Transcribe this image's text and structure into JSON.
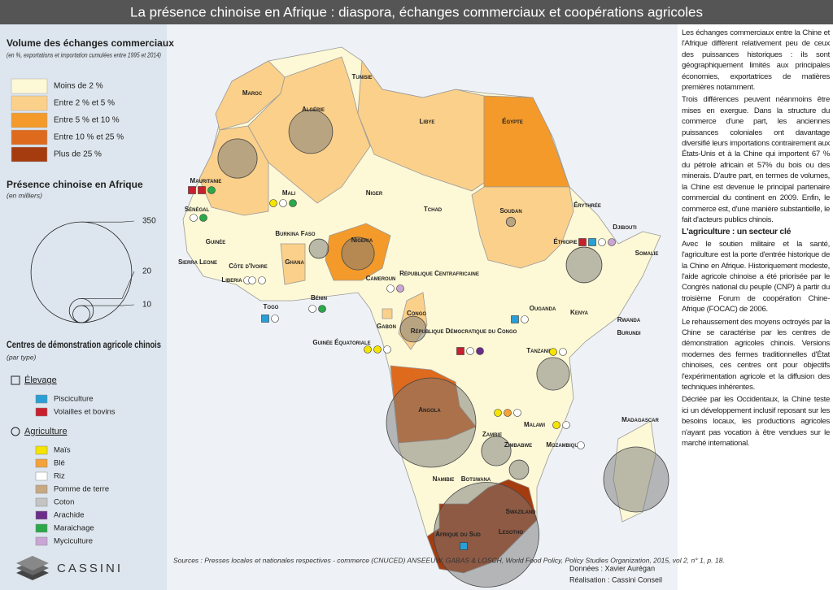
{
  "title": "La présence chinoise en Afrique : diaspora, échanges commerciaux et coopérations agricoles",
  "legend": {
    "volume_title": "Volume des échanges commerciaux",
    "volume_subtitle": "(en %, exportations et importation cumulées entre 1995 et 2014)",
    "classes": [
      {
        "label": "Moins de 2 %",
        "color": "#fdf8d6"
      },
      {
        "label": "Entre 2 % et 5 %",
        "color": "#fbd08a"
      },
      {
        "label": "Entre 5 % et 10 %",
        "color": "#f39a2a"
      },
      {
        "label": "Entre 10 % et 25 %",
        "color": "#de6a1e"
      },
      {
        "label": "Plus de 25 %",
        "color": "#a43c10"
      }
    ],
    "presence_title": "Présence chinoise en Afrique",
    "presence_subtitle": "(en milliers)",
    "presence_ticks": [
      350,
      20,
      10
    ],
    "centers_title": "Centres de démonstration agricole chinois",
    "centers_subtitle": "(par type)",
    "groups": [
      {
        "label": "Élevage",
        "items": [
          {
            "label": "Pisciculture",
            "color": "#2a9fd6"
          },
          {
            "label": "Volailles et bovins",
            "color": "#c8202f"
          }
        ]
      },
      {
        "label": "Agriculture",
        "items": [
          {
            "label": "Maïs",
            "color": "#f5e400"
          },
          {
            "label": "Blé",
            "color": "#f4a23a"
          },
          {
            "label": "Riz",
            "color": "#ffffff"
          },
          {
            "label": "Pomme de terre",
            "color": "#c8a882"
          },
          {
            "label": "Coton",
            "color": "#c4c4c4"
          },
          {
            "label": "Arachide",
            "color": "#6b2d8a"
          },
          {
            "label": "Maraichage",
            "color": "#2aa84a"
          },
          {
            "label": "Myciculture",
            "color": "#c9a6d6"
          }
        ]
      }
    ]
  },
  "countries": [
    {
      "label": "Maroc",
      "class": 1
    },
    {
      "label": "Algérie",
      "class": 1,
      "presence": 66
    },
    {
      "label": "Tunisie",
      "class": 0
    },
    {
      "label": "Libye",
      "class": 1
    },
    {
      "label": "Égypte",
      "class": 2
    },
    {
      "label": "Mauritanie",
      "class": 1,
      "presence": 53,
      "centers": [
        [
          0,
          1
        ],
        [
          0,
          1
        ],
        [
          1,
          6
        ]
      ]
    },
    {
      "label": "Mali",
      "class": 0,
      "centers": [
        [
          1,
          0
        ],
        [
          1,
          2
        ],
        [
          1,
          6
        ]
      ]
    },
    {
      "label": "Niger",
      "class": 0
    },
    {
      "label": "Tchad",
      "class": 0
    },
    {
      "label": "Soudan",
      "class": 1,
      "presence": 3
    },
    {
      "label": "Érythrée",
      "class": 0
    },
    {
      "label": "Djibouti",
      "class": 0
    },
    {
      "label": "Éthiopie",
      "class": 0,
      "presence": 44,
      "centers": [
        [
          0,
          1
        ],
        [
          0,
          0
        ],
        [
          1,
          2
        ],
        [
          1,
          7
        ]
      ]
    },
    {
      "label": "Somalie",
      "class": 0
    },
    {
      "label": "Sénégal",
      "class": 0,
      "centers": [
        [
          1,
          2
        ],
        [
          1,
          6
        ]
      ]
    },
    {
      "label": "Guinée",
      "class": 0
    },
    {
      "label": "Sierra Leone",
      "class": 0
    },
    {
      "label": "Liberia",
      "class": 0,
      "centers": [
        [
          1,
          2
        ]
      ]
    },
    {
      "label": "Côte d'Ivoire",
      "class": 0,
      "centers": [
        [
          1,
          2
        ],
        [
          1,
          2
        ]
      ]
    },
    {
      "label": "Burkina Faso",
      "class": 0,
      "presence": 13
    },
    {
      "label": "Ghana",
      "class": 1
    },
    {
      "label": "Togo",
      "class": 0,
      "centers": [
        [
          0,
          0
        ],
        [
          1,
          2
        ]
      ]
    },
    {
      "label": "Bénin",
      "class": 0,
      "centers": [
        [
          1,
          2
        ],
        [
          1,
          6
        ]
      ]
    },
    {
      "label": "Nigeria",
      "class": 2,
      "presence": 37
    },
    {
      "label": "Cameroun",
      "class": 0,
      "centers": [
        [
          1,
          2
        ],
        [
          1,
          7
        ]
      ]
    },
    {
      "label": "République Centrafricaine",
      "class": 0
    },
    {
      "label": "Guinée Équatoriale",
      "class": 1,
      "centers": [
        [
          1,
          0
        ],
        [
          1,
          0
        ],
        [
          1,
          2
        ]
      ]
    },
    {
      "label": "Gabon",
      "class": 0
    },
    {
      "label": "Congo",
      "class": 1,
      "presence": 23
    },
    {
      "label": "République Démocratique du Congo",
      "class": 0,
      "centers": [
        [
          0,
          1
        ],
        [
          1,
          2
        ],
        [
          1,
          5
        ]
      ]
    },
    {
      "label": "Ouganda",
      "class": 0,
      "centers": [
        [
          0,
          0
        ],
        [
          1,
          2
        ]
      ]
    },
    {
      "label": "Kenya",
      "class": 0
    },
    {
      "label": "Rwanda",
      "class": 0
    },
    {
      "label": "Burundi",
      "class": 0
    },
    {
      "label": "Tanzanie",
      "class": 0,
      "presence": 37,
      "centers": [
        [
          1,
          0
        ],
        [
          1,
          2
        ]
      ]
    },
    {
      "label": "Angola",
      "class": 3,
      "presence": 276
    },
    {
      "label": "Zambie",
      "class": 0,
      "presence": 30,
      "centers": [
        [
          1,
          0
        ],
        [
          1,
          1
        ],
        [
          1,
          2
        ]
      ]
    },
    {
      "label": "Malawi",
      "class": 0,
      "centers": [
        [
          1,
          0
        ],
        [
          1,
          2
        ]
      ]
    },
    {
      "label": "Mozambique",
      "class": 0,
      "centers": [
        [
          1,
          2
        ]
      ]
    },
    {
      "label": "Zimbabwe",
      "class": 0,
      "presence": 13
    },
    {
      "label": "Madagascar",
      "class": 0,
      "presence": 146
    },
    {
      "label": "Namibie",
      "class": 0
    },
    {
      "label": "Botswana",
      "class": 0
    },
    {
      "label": "Afrique du Sud",
      "class": 4,
      "presence": 380,
      "centers": [
        [
          0,
          0
        ]
      ]
    },
    {
      "label": "Lesotho",
      "class": 0
    },
    {
      "label": "Swaziland",
      "class": 0
    }
  ],
  "sources": "Sources : Presses locales et nationales respectives - commerce (CNUCED) ANSEEUW, GABAS & LOSCH, World Food Policy, Policy Studies Organization, 2015, vol 2, n° 1, p. 18.",
  "credits": [
    "Données : Xavier Aurégan",
    "Réalisation : Cassini Conseil"
  ],
  "logo": "CASSINI",
  "text": {
    "paragraphs_1": [
      "Les échanges commerciaux entre la Chine et l'Afrique diffèrent relativement peu de ceux des puissances historiques : ils sont géographiquement limités aux principales économies, exportatrices de matières premières notamment.",
      "Trois différences peuvent néanmoins être mises en exergue. Dans la structure du commerce d'une part, les anciennes puissances coloniales ont davantage diversifié leurs importations contrairement aux États-Unis et à la Chine qui importent 67 % du pétrole africain et 57% du bois ou des minerais. D'autre part, en termes de volumes, la Chine est devenue le principal partenaire commercial du continent en 2009. Enfin, le commerce est, d'une manière substantielle, le fait d'acteurs publics chinois."
    ],
    "heading": "L'agriculture : un secteur clé",
    "paragraphs_2": [
      "Avec le soutien militaire et la santé, l'agriculture est la porte d'entrée historique de la Chine en Afrique. Historiquement modeste, l'aide agricole chinoise a été priorisée par le Congrès national du peuple (CNP) à partir du troisième Forum de coopération Chine-Afrique (FOCAC) de 2006.",
      "Le rehaussement des moyens octroyés par la Chine se caractérise par les centres de démonstration agricoles chinois. Versions modernes des fermes traditionnelles d'État chinoises, ces centres ont pour objectifs l'expérimentation agricole et la diffusion des techniques inhérentes.",
      "Décriée par les Occidentaux, la Chine teste ici un développement inclusif reposant sur les besoins locaux, les productions agricoles n'ayant pas vocation à être vendues sur le marché international."
    ]
  }
}
